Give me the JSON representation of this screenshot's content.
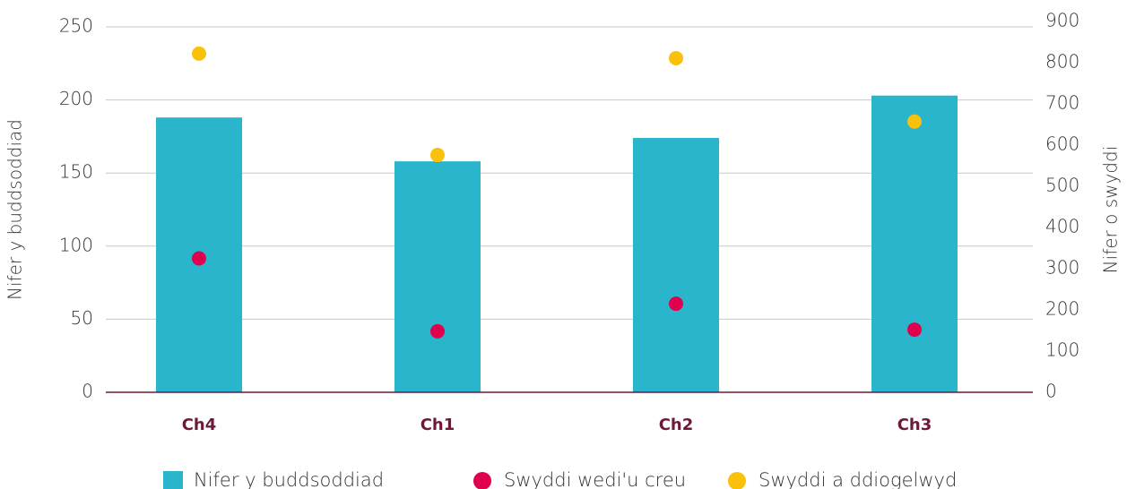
{
  "chart_data": {
    "type": "bar",
    "categories": [
      "Ch4",
      "Ch1",
      "Ch2",
      "Ch3"
    ],
    "y_label": "Nifer y buddsoddiad",
    "y2_label": "Nifer o swyddi",
    "ylim": [
      0,
      250
    ],
    "yticks": [
      0,
      50,
      100,
      150,
      200,
      250
    ],
    "y2lim": [
      0,
      900
    ],
    "y2ticks": [
      0,
      100,
      200,
      300,
      400,
      500,
      600,
      700,
      800,
      900
    ],
    "grid": true,
    "legend": "bottom",
    "series": [
      {
        "name": "Nifer y buddsoddiad",
        "type": "bar",
        "color": "#29b6cc",
        "values": [
          188,
          158,
          174,
          203
        ]
      },
      {
        "name": "Swyddi wedi'u creu",
        "type": "scatter",
        "axis": "y2",
        "color": "#e0004d",
        "values": [
          325,
          148,
          215,
          152
        ]
      },
      {
        "name": "Swyddi a ddiogelwyd",
        "type": "scatter",
        "axis": "y2",
        "color": "#f9c00c",
        "values": [
          822,
          576,
          811,
          657
        ]
      }
    ]
  }
}
